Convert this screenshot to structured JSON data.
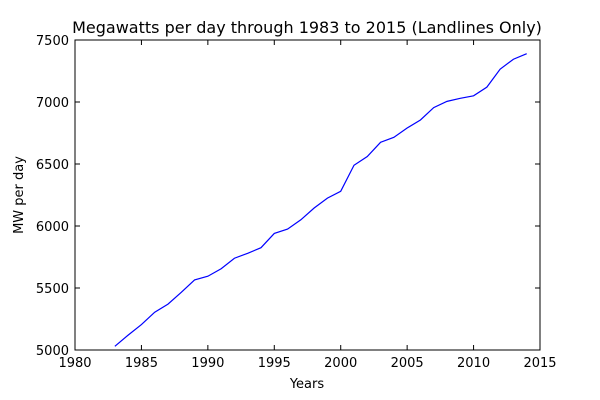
{
  "chart_data": {
    "type": "line",
    "title": "Megawatts per day through 1983 to 2015 (Landlines Only)",
    "xlabel": "Years",
    "ylabel": "MW per day",
    "xlim": [
      1980,
      2015
    ],
    "ylim": [
      5000,
      7500
    ],
    "xticks": [
      1980,
      1985,
      1990,
      1995,
      2000,
      2005,
      2010,
      2015
    ],
    "yticks": [
      5000,
      5500,
      6000,
      6500,
      7000,
      7500
    ],
    "grid": false,
    "line_color": "#0000ff",
    "series": [
      {
        "x": [
          1983,
          1984,
          1985,
          1986,
          1987,
          1988,
          1989,
          1990,
          1991,
          1992,
          1993,
          1994,
          1995,
          1996,
          1997,
          1998,
          1999,
          2000,
          2001,
          2002,
          2003,
          2004,
          2005,
          2006,
          2007,
          2008,
          2009,
          2010,
          2011,
          2012,
          2013,
          2014
        ],
        "values": [
          5030,
          5120,
          5205,
          5305,
          5370,
          5465,
          5565,
          5595,
          5655,
          5740,
          5780,
          5825,
          5940,
          5975,
          6050,
          6145,
          6225,
          6280,
          6490,
          6560,
          6675,
          6715,
          6790,
          6855,
          6955,
          7005,
          7030,
          7050,
          7120,
          7265,
          7345,
          7390
        ]
      }
    ]
  }
}
